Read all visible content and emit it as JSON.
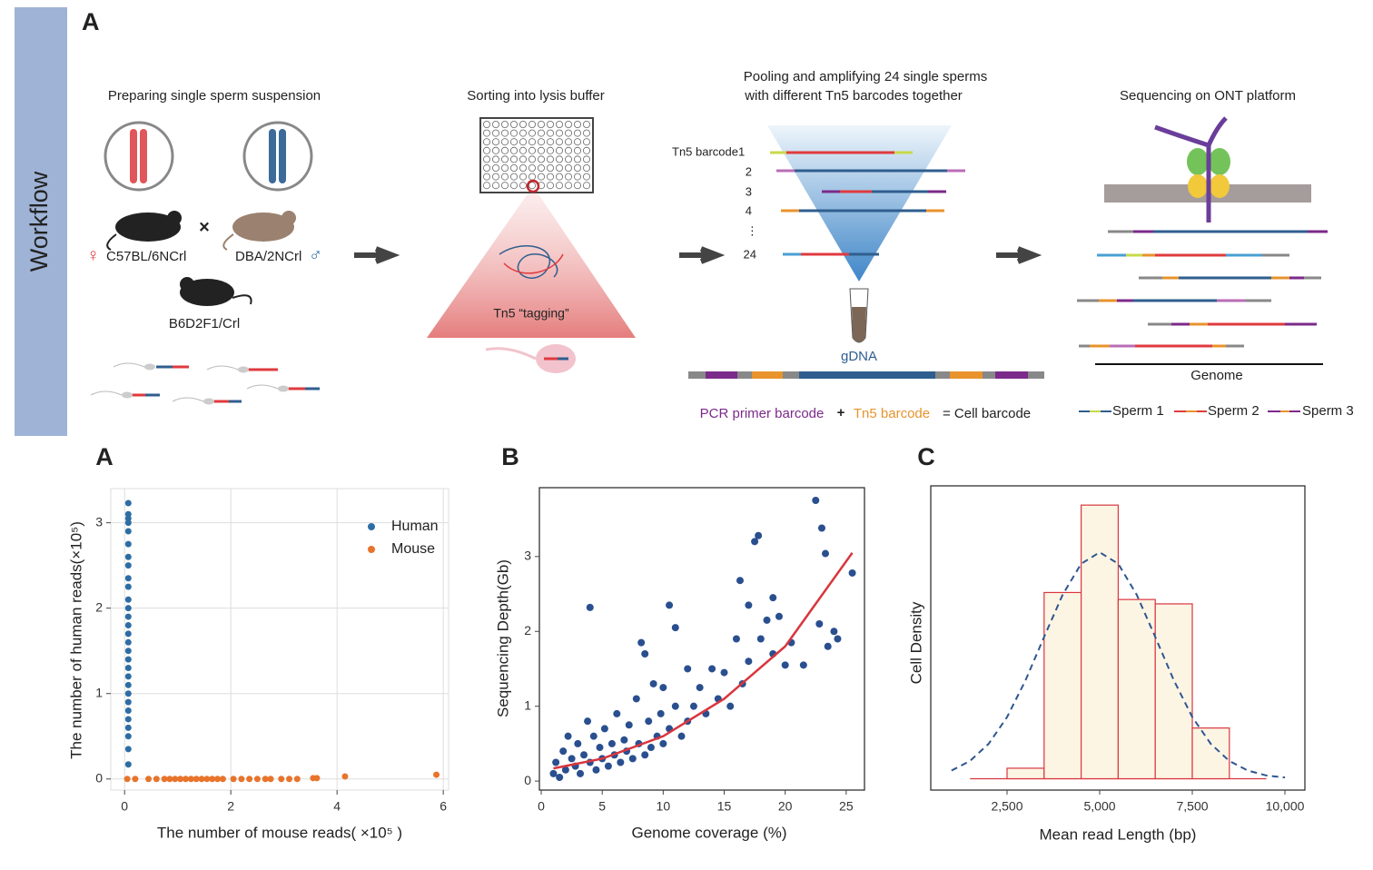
{
  "workflow": {
    "panel": "A",
    "side_label": "Workflow",
    "steps": [
      "Preparing single sperm suspension",
      "Sorting into lysis buffer",
      "Pooling and amplifying 24 single sperms",
      "with different Tn5 barcodes together",
      "Sequencing on ONT platform"
    ],
    "female_symbol": "♀",
    "male_symbol": "♂",
    "cross": "×",
    "strains": [
      "C57BL/6NCrl",
      "DBA/2NCrl",
      "B6D2F1/Crl"
    ],
    "tagging": "Tn5 “tagging”",
    "barcodes": [
      "Tn5 barcode1",
      "2",
      "3",
      "4",
      "24"
    ],
    "gdna": "gDNA",
    "legend": [
      "PCR primer barcode",
      "+",
      "Tn5 barcode",
      "= Cell barcode"
    ],
    "genome": "Genome",
    "sperms": [
      "Sperm 1",
      "Sperm 2",
      "Sperm 3"
    ]
  },
  "chart_data": [
    {
      "type": "scatter",
      "panel": "A",
      "x_label": "The number of mouse reads( ×10⁵ )",
      "y_label": "The number of human reads(×10⁵)",
      "xlim": [
        -0.26,
        6.1
      ],
      "ylim": [
        -0.13,
        3.4
      ],
      "xticks": [
        0,
        2,
        4,
        6
      ],
      "yticks": [
        0,
        1,
        2,
        3
      ],
      "grid": true,
      "legend": "top-right",
      "series": [
        {
          "name": "Human",
          "color": "#2e6da4",
          "x": [
            0.07,
            0.07,
            0.07,
            0.07,
            0.07,
            0.07,
            0.07,
            0.07,
            0.07,
            0.07,
            0.07,
            0.07,
            0.07,
            0.07,
            0.07,
            0.07,
            0.07,
            0.07,
            0.07,
            0.07,
            0.07,
            0.07,
            0.07,
            0.07,
            0.07,
            0.07,
            0.07,
            0.07,
            0.07
          ],
          "values": [
            0.17,
            0.35,
            0.5,
            0.6,
            0.7,
            0.8,
            0.9,
            1.0,
            1.1,
            1.2,
            1.3,
            1.4,
            1.5,
            1.6,
            1.7,
            1.8,
            1.9,
            2.0,
            2.1,
            2.25,
            2.35,
            2.5,
            2.6,
            2.75,
            2.9,
            3.0,
            3.05,
            3.1,
            3.23
          ]
        },
        {
          "name": "Mouse",
          "color": "#e8742c",
          "x": [
            0.05,
            0.2,
            0.45,
            0.6,
            0.75,
            0.85,
            0.95,
            1.05,
            1.15,
            1.25,
            1.35,
            1.45,
            1.55,
            1.65,
            1.75,
            1.85,
            2.05,
            2.2,
            2.35,
            2.5,
            2.65,
            2.75,
            2.95,
            3.1,
            3.25,
            3.55,
            3.62,
            4.15,
            5.87
          ],
          "values": [
            0,
            0,
            0,
            0,
            0,
            0,
            0,
            0,
            0,
            0,
            0,
            0,
            0,
            0,
            0,
            0,
            0,
            0,
            0,
            0,
            0,
            0,
            0,
            0,
            0,
            0.01,
            0.01,
            0.03,
            0.05
          ]
        }
      ]
    },
    {
      "type": "scatter",
      "panel": "B",
      "x_label": "Genome coverage (%)",
      "y_label": "Sequencing Depth(Gb)",
      "xlim": [
        -0.15,
        26.5
      ],
      "ylim": [
        -0.12,
        3.92
      ],
      "xticks": [
        0,
        5,
        10,
        15,
        20,
        25
      ],
      "yticks": [
        0,
        1,
        2,
        3
      ],
      "grid": false,
      "series": [
        {
          "color": "#2a4f8f",
          "x": [
            1,
            1.2,
            1.5,
            1.8,
            2,
            2.2,
            2.5,
            2.8,
            3,
            3.2,
            3.5,
            3.8,
            4,
            4,
            4.3,
            4.5,
            4.8,
            5,
            5.2,
            5.5,
            5.8,
            6,
            6.2,
            6.5,
            6.8,
            7,
            7.2,
            7.5,
            7.8,
            8,
            8.2,
            8.5,
            8.5,
            8.8,
            9,
            9.2,
            9.5,
            9.8,
            10,
            10,
            10.5,
            10.5,
            11,
            11,
            11.5,
            12,
            12,
            12.5,
            13,
            13.5,
            14,
            14.5,
            15,
            15.5,
            16,
            16.3,
            16.5,
            17,
            17,
            17.5,
            17.8,
            18,
            18.5,
            19,
            19,
            19.5,
            20,
            20.5,
            21.5,
            22.5,
            22.8,
            23,
            23.3,
            23.5,
            24,
            24.3,
            25.5
          ],
          "values": [
            0.1,
            0.25,
            0.05,
            0.4,
            0.15,
            0.6,
            0.3,
            0.2,
            0.5,
            0.1,
            0.35,
            0.8,
            2.32,
            0.25,
            0.6,
            0.15,
            0.45,
            0.3,
            0.7,
            0.2,
            0.5,
            0.35,
            0.9,
            0.25,
            0.55,
            0.4,
            0.75,
            0.3,
            1.1,
            0.5,
            1.85,
            0.35,
            1.7,
            0.8,
            0.45,
            1.3,
            0.6,
            0.9,
            0.5,
            1.25,
            2.35,
            0.7,
            1.0,
            2.05,
            0.6,
            1.5,
            0.8,
            1.0,
            1.25,
            0.9,
            1.5,
            1.1,
            1.45,
            1.0,
            1.9,
            2.68,
            1.3,
            2.35,
            1.6,
            3.2,
            3.28,
            1.9,
            2.15,
            2.45,
            1.7,
            2.2,
            1.55,
            1.85,
            1.55,
            3.75,
            2.1,
            3.38,
            3.04,
            1.8,
            2.0,
            1.9,
            2.78
          ]
        }
      ],
      "fit": {
        "color": "#d9363e",
        "x": [
          1,
          5,
          10,
          15,
          20,
          25.5
        ],
        "values": [
          0.17,
          0.3,
          0.6,
          1.1,
          1.8,
          3.05
        ]
      }
    },
    {
      "type": "histogram",
      "panel": "C",
      "x_label": "Mean read Length (bp)",
      "y_label": "Cell Density",
      "xlim": [
        441,
        10539
      ],
      "ylim": [
        -1.3e-05,
        0.000335
      ],
      "xticks": [
        {
          "value": 2500,
          "label": "2,500"
        },
        {
          "value": 5000,
          "label": "5,000"
        },
        {
          "value": 7500,
          "label": "7,500"
        },
        {
          "value": 10000,
          "label": "10,000"
        }
      ],
      "bins": [
        1500,
        2500,
        3500,
        4500,
        5500,
        6500,
        7500,
        8500,
        9500
      ],
      "values": [
        0,
        1.2e-05,
        0.000213,
        0.000313,
        0.000205,
        0.0002,
        5.8e-05,
        0
      ],
      "color": "#fdf5e4",
      "edge_color": "#d9363e",
      "curve": {
        "color": "#2f5690",
        "x": [
          1000,
          1500,
          2000,
          2500,
          3000,
          3500,
          4000,
          4500,
          5000,
          5500,
          6000,
          6500,
          7000,
          7500,
          8000,
          8500,
          9000,
          9500,
          10000
        ],
        "values": [
          9.3e-06,
          2.03e-05,
          3.98e-05,
          7.05e-05,
          0.0001127,
          0.0001622,
          0.0002104,
          0.0002459,
          0.000259,
          0.0002459,
          0.0002104,
          0.0001622,
          0.0001127,
          7.05e-05,
          3.98e-05,
          2.03e-05,
          9.3e-06,
          3.7e-06,
          1.4e-06
        ]
      }
    }
  ]
}
